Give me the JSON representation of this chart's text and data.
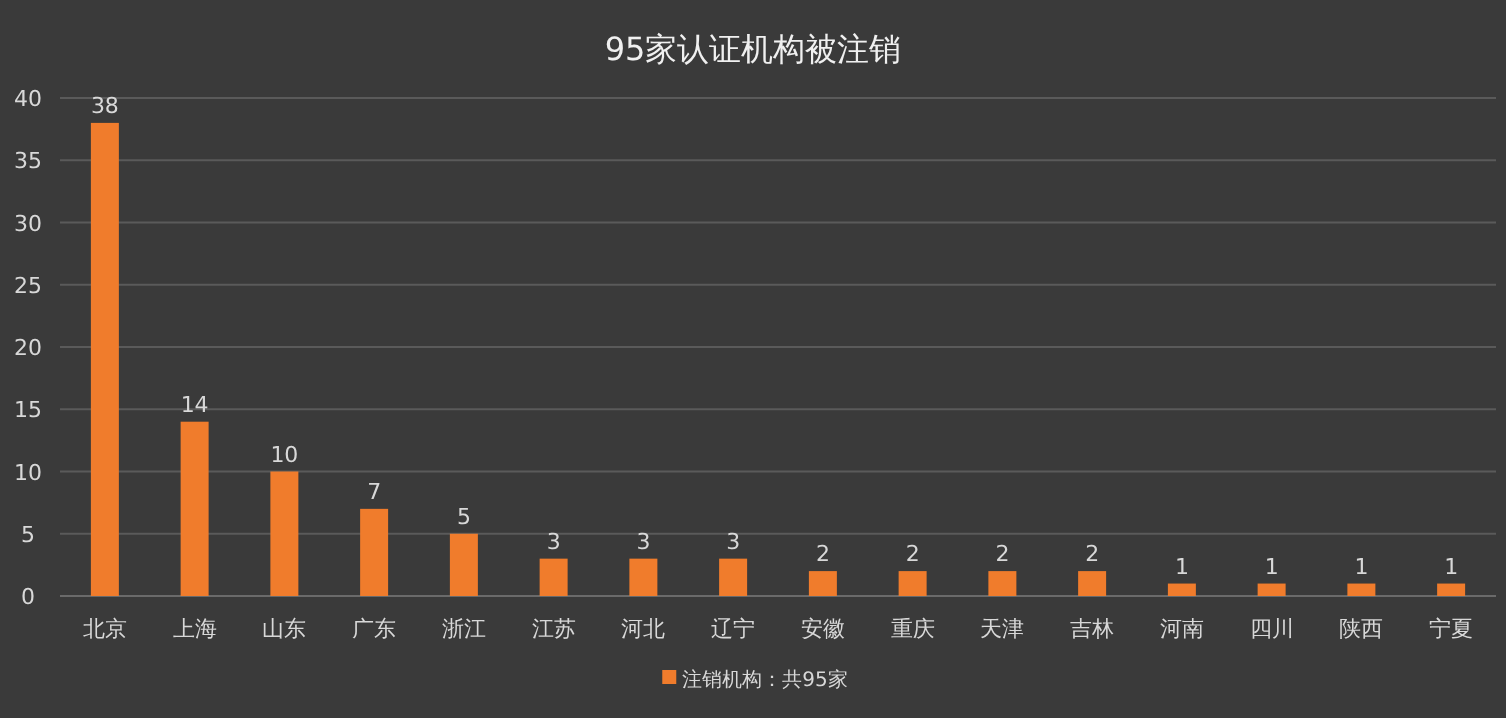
{
  "chart_data": {
    "type": "bar",
    "title": "95家认证机构被注销",
    "categories": [
      "北京",
      "上海",
      "山东",
      "广东",
      "浙江",
      "江苏",
      "河北",
      "辽宁",
      "安徽",
      "重庆",
      "天津",
      "吉林",
      "河南",
      "四川",
      "陕西",
      "宁夏"
    ],
    "series": [
      {
        "name": "注销机构：共95家",
        "color": "#f07c2c",
        "values": [
          38,
          14,
          10,
          7,
          5,
          3,
          3,
          3,
          2,
          2,
          2,
          2,
          1,
          1,
          1,
          1
        ]
      }
    ],
    "ylim": [
      0,
      40
    ],
    "yticks": [
      0,
      5,
      10,
      15,
      20,
      25,
      30,
      35,
      40
    ],
    "grid": "y",
    "legend": "bottom",
    "data_labels": true
  }
}
